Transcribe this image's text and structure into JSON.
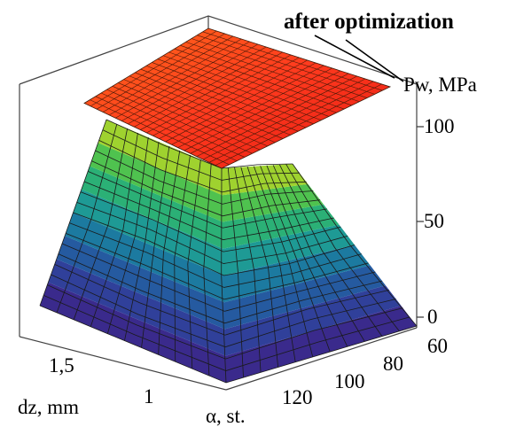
{
  "chart_data": {
    "type": "surface3d",
    "annotation": "after optimization",
    "z_label": "Pw, MPa",
    "x_label": "dz, mm",
    "y_label": "α, st.",
    "z_ticks": [
      "0",
      "50",
      "100"
    ],
    "x_ticks": [
      "1,5",
      "1"
    ],
    "y_ticks": [
      "60",
      "80",
      "100",
      "120"
    ],
    "zlim": [
      0,
      110
    ],
    "top_plane_level": 110,
    "colormap": [
      "#3a2a8c",
      "#30409a",
      "#255aa0",
      "#1c7aa0",
      "#1e9a95",
      "#2bb076",
      "#4fc24f",
      "#9fd22f"
    ],
    "top_plane_colors": [
      "#ff6a1a",
      "#ff3a1e",
      "#e41a12"
    ],
    "grid": false
  }
}
